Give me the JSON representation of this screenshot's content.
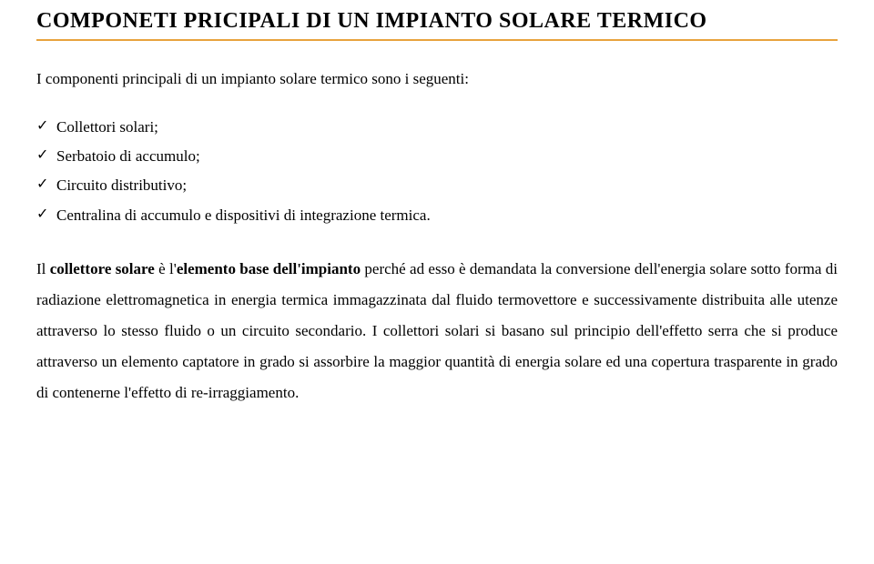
{
  "title": "COMPONETI PRICIPALI DI UN IMPIANTO SOLARE TERMICO",
  "divider_color": "#e8a33d",
  "intro": "I componenti principali di un impianto solare termico sono i seguenti:",
  "bullets": [
    "Collettori solari;",
    "Serbatoio di accumulo;",
    "Circuito distributivo;",
    "Centralina di accumulo e dispositivi di integrazione termica."
  ],
  "para_lead": "Il ",
  "para_bold1": "collettore solare",
  "para_mid1": " è l'",
  "para_bold2": "elemento base dell'impianto",
  "para_rest": " perché ad esso è demandata la conversione dell'energia solare sotto forma di radiazione elettromagnetica in energia termica immagazzinata dal fluido termovettore e successivamente distribuita alle utenze attraverso lo stesso fluido o un circuito secondario. I collettori solari si basano sul principio dell'effetto serra che si produce attraverso un elemento captatore in grado si assorbire la maggior quantità di energia solare ed una copertura trasparente in grado di contenerne l'effetto di re-irraggiamento."
}
